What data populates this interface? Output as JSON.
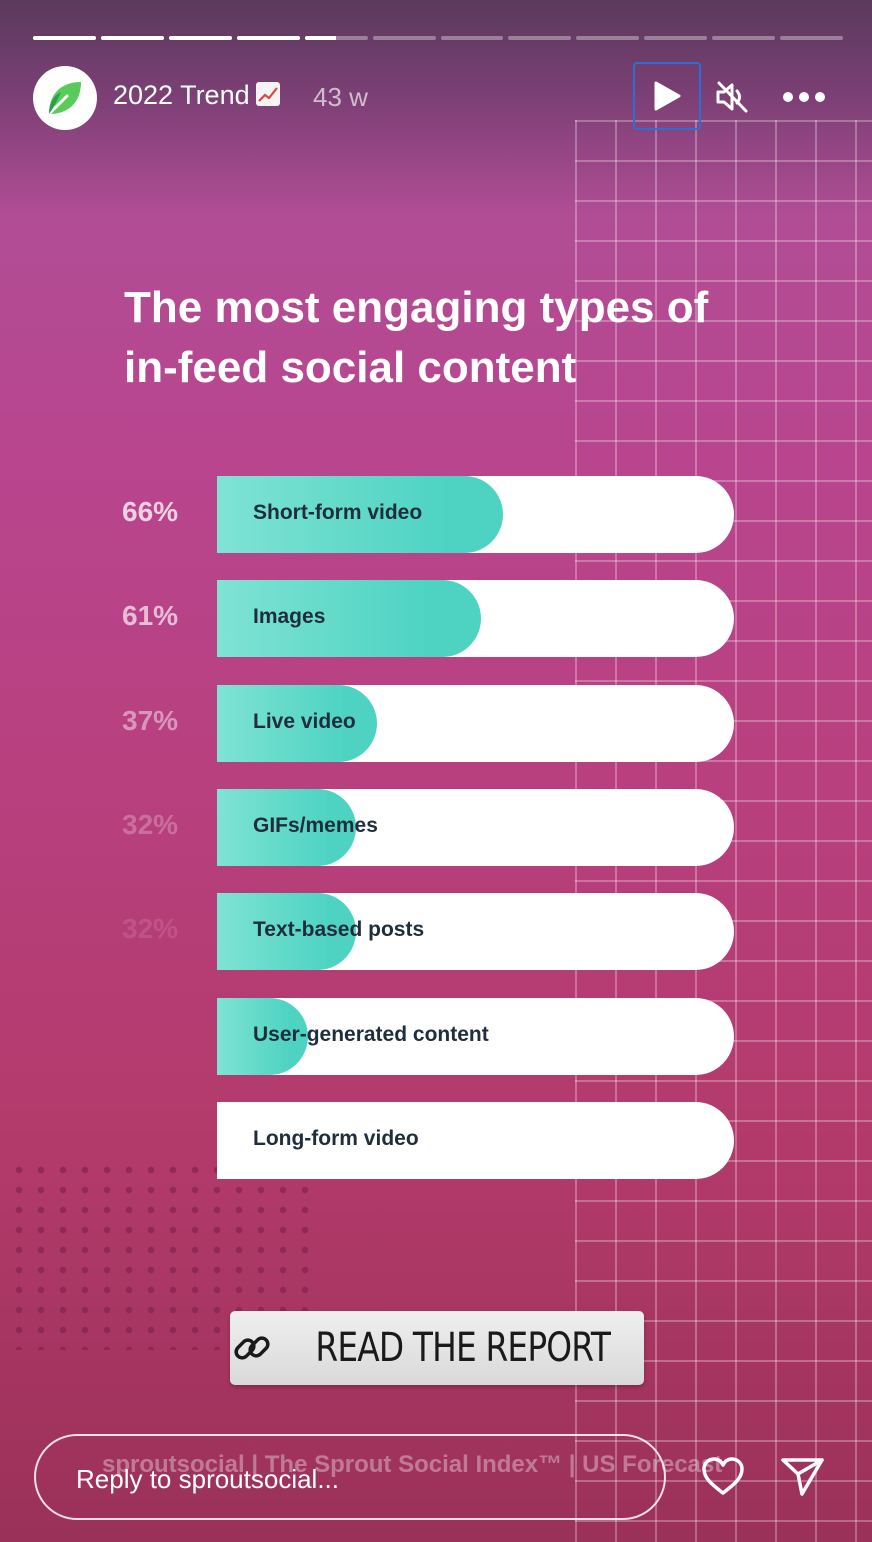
{
  "story": {
    "progress_segments": [
      1,
      1,
      1,
      1,
      0.5,
      0,
      0,
      0,
      0,
      0,
      0,
      0
    ],
    "title": "2022 Trend",
    "title_emoji": "chart-increasing-icon",
    "age": "43 w"
  },
  "content": {
    "heading": "The most engaging types of in-feed social content",
    "bars": [
      {
        "pct": "66%",
        "label": "Short-form video",
        "value": 0.66,
        "pct_opacity": 0.75
      },
      {
        "pct": "61%",
        "label": "Images",
        "value": 0.61,
        "pct_opacity": 0.65
      },
      {
        "pct": "37%",
        "label": "Live video",
        "value": 0.37,
        "pct_opacity": 0.45
      },
      {
        "pct": "32%",
        "label": "GIFs/memes",
        "value": 0.32,
        "pct_opacity": 0.25
      },
      {
        "pct": "32%",
        "label": "Text-based posts",
        "value": 0.32,
        "pct_opacity": 0.12
      },
      {
        "pct": "",
        "label": "User-generated content",
        "value": 0.21,
        "pct_opacity": 0
      },
      {
        "pct": "",
        "label": "Long-form video",
        "value": 0,
        "pct_opacity": 0
      }
    ],
    "report_button": "READ THE REPORT",
    "footer": "sproutsocial  |  The Sprout Social Index™  |  US Forecast"
  },
  "reply": {
    "placeholder": "Reply to sproutsocial..."
  },
  "colors": {
    "accent_focus": "#2f6dd5",
    "bar_fill": "#4ed3c3",
    "sprout_green": "#59cb59"
  }
}
